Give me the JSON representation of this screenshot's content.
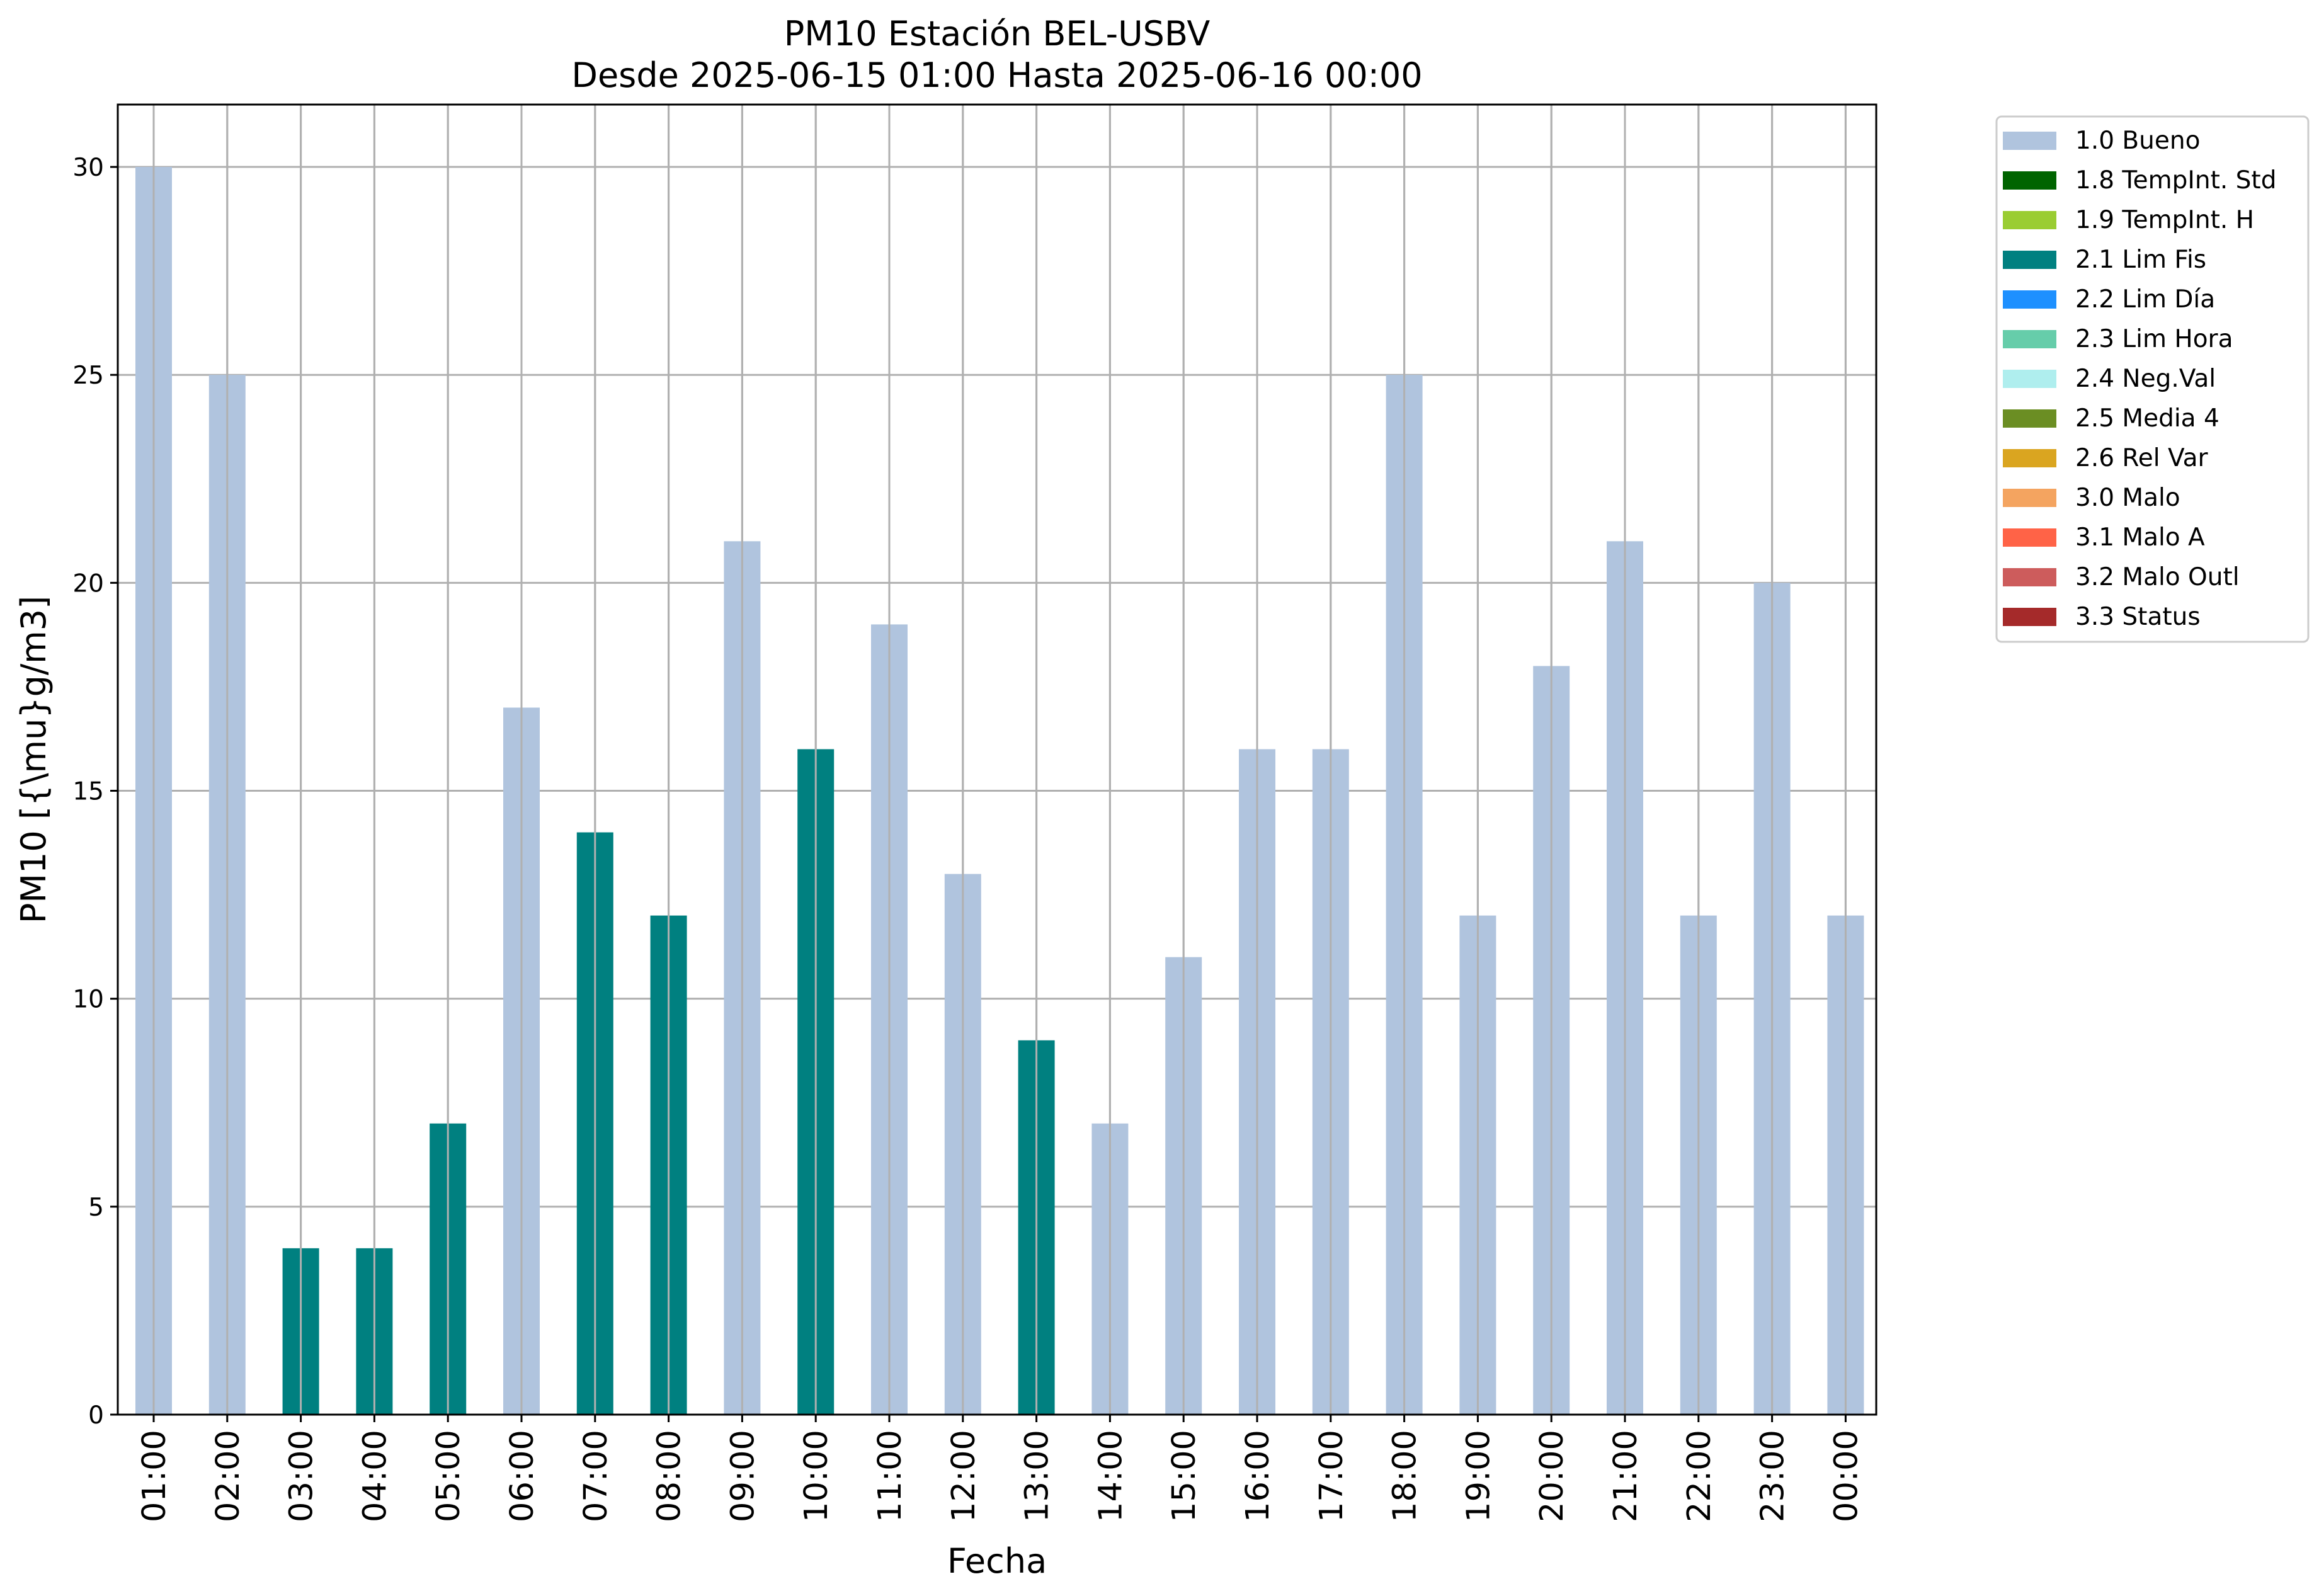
{
  "chart_data": {
    "type": "bar",
    "title": "PM10 Estación BEL-USBV",
    "subtitle": "Desde 2025-06-15 01:00 Hasta 2025-06-16 00:00",
    "xlabel": "Fecha",
    "ylabel": "PM10 [{\\mu}g/m3]",
    "ylim": [
      0,
      31.5
    ],
    "yticks": [
      0,
      5,
      10,
      15,
      20,
      25,
      30
    ],
    "grid": true,
    "legend_position": "outside-top-right",
    "categories": [
      "01:00",
      "02:00",
      "03:00",
      "04:00",
      "05:00",
      "06:00",
      "07:00",
      "08:00",
      "09:00",
      "10:00",
      "11:00",
      "12:00",
      "13:00",
      "14:00",
      "15:00",
      "16:00",
      "17:00",
      "18:00",
      "19:00",
      "20:00",
      "21:00",
      "22:00",
      "23:00",
      "00:00"
    ],
    "values": [
      30,
      25,
      4,
      4,
      7,
      17,
      14,
      12,
      21,
      16,
      19,
      13,
      9,
      7,
      11,
      16,
      16,
      25,
      12,
      18,
      21,
      12,
      20,
      12
    ],
    "flags": [
      "1.0 Bueno",
      "1.0 Bueno",
      "2.1 Lim Fis",
      "2.1 Lim Fis",
      "2.1 Lim Fis",
      "1.0 Bueno",
      "2.1 Lim Fis",
      "2.1 Lim Fis",
      "1.0 Bueno",
      "2.1 Lim Fis",
      "1.0 Bueno",
      "1.0 Bueno",
      "2.1 Lim Fis",
      "1.0 Bueno",
      "1.0 Bueno",
      "1.0 Bueno",
      "1.0 Bueno",
      "1.0 Bueno",
      "1.0 Bueno",
      "1.0 Bueno",
      "1.0 Bueno",
      "1.0 Bueno",
      "1.0 Bueno",
      "1.0 Bueno"
    ],
    "legend": [
      {
        "label": "1.0 Bueno",
        "color": "#b0c4de"
      },
      {
        "label": "1.8 TempInt. Std",
        "color": "#006400"
      },
      {
        "label": "1.9 TempInt. H",
        "color": "#9acd32"
      },
      {
        "label": "2.1 Lim Fis",
        "color": "#008080"
      },
      {
        "label": "2.2 Lim Día",
        "color": "#1e90ff"
      },
      {
        "label": "2.3 Lim Hora",
        "color": "#66cdaa"
      },
      {
        "label": "2.4 Neg.Val",
        "color": "#afeeee"
      },
      {
        "label": "2.5 Media 4",
        "color": "#6b8e23"
      },
      {
        "label": "2.6 Rel Var",
        "color": "#daa520"
      },
      {
        "label": "3.0 Malo",
        "color": "#f4a460"
      },
      {
        "label": "3.1 Malo A",
        "color": "#ff6347"
      },
      {
        "label": "3.2 Malo Outl",
        "color": "#cd5c5c"
      },
      {
        "label": "3.3 Status",
        "color": "#a52a2a"
      }
    ]
  }
}
